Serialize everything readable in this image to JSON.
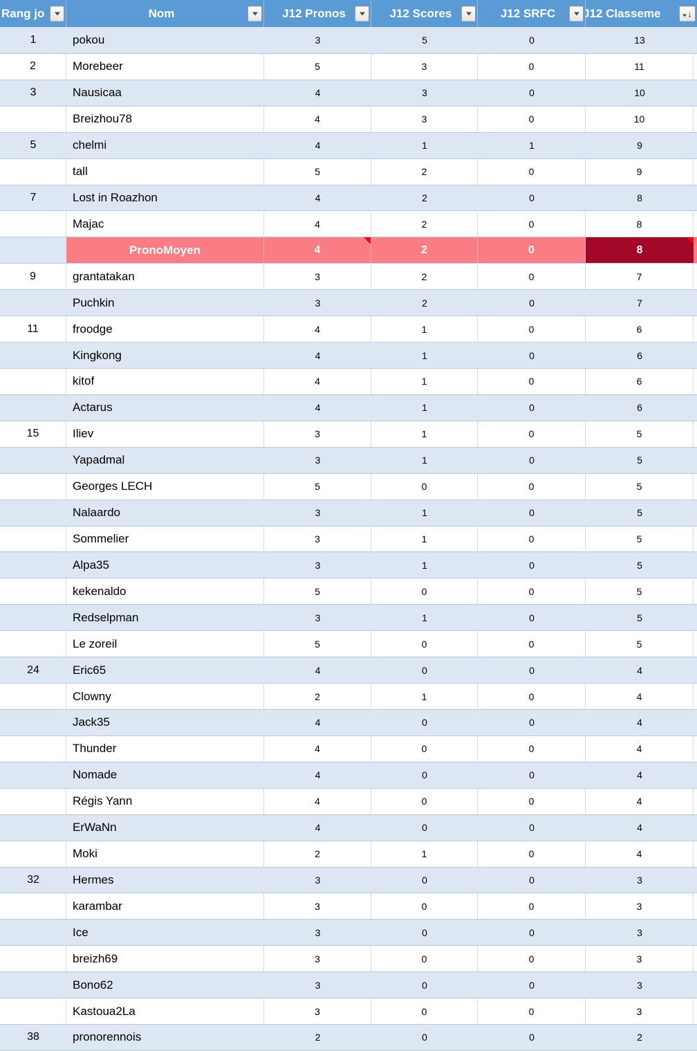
{
  "table": {
    "description_visible": "classement table",
    "colors": {
      "header_bg": "#5B9BD5",
      "header_text": "#FFFFFF",
      "band_blue": "#DCE7F3",
      "band_white": "#FFFFFF",
      "gridline_horizontal": "#B7CCE2",
      "gridline_vertical": "#D7DCE2",
      "average_row_bg": "#F97D82",
      "average_total_bg": "#A30728",
      "comment_indicator": "#FB0207"
    },
    "header": {
      "columns": [
        {
          "label": "Rang jo",
          "icon": "filter-dropdown-icon"
        },
        {
          "label": "Nom",
          "icon": "filter-dropdown-icon"
        },
        {
          "label": "J12 Pronos",
          "icon": "filter-dropdown-icon"
        },
        {
          "label": "J12 Scores",
          "icon": "filter-dropdown-icon"
        },
        {
          "label": "J12 SRFC",
          "icon": "filter-dropdown-icon"
        },
        {
          "label": "J12 Classeme",
          "icon": "sort-desc-filter-icon"
        }
      ]
    },
    "rows": [
      {
        "rank": "1",
        "name": "pokou",
        "pronos": "3",
        "scores": "5",
        "srfc": "0",
        "classement": "13"
      },
      {
        "rank": "2",
        "name": "Morebeer",
        "pronos": "5",
        "scores": "3",
        "srfc": "0",
        "classement": "11"
      },
      {
        "rank": "3",
        "name": "Nausicaa",
        "pronos": "4",
        "scores": "3",
        "srfc": "0",
        "classement": "10"
      },
      {
        "rank": "",
        "name": "Breizhou78",
        "pronos": "4",
        "scores": "3",
        "srfc": "0",
        "classement": "10"
      },
      {
        "rank": "5",
        "name": "chelmi",
        "pronos": "4",
        "scores": "1",
        "srfc": "1",
        "classement": "9"
      },
      {
        "rank": "",
        "name": "tall",
        "pronos": "5",
        "scores": "2",
        "srfc": "0",
        "classement": "9"
      },
      {
        "rank": "7",
        "name": "Lost in Roazhon",
        "pronos": "4",
        "scores": "2",
        "srfc": "0",
        "classement": "8"
      },
      {
        "rank": "",
        "name": "Majac",
        "pronos": "4",
        "scores": "2",
        "srfc": "0",
        "classement": "8"
      },
      {
        "rank": "",
        "name": "PronoMoyen",
        "pronos": "4",
        "scores": "2",
        "srfc": "0",
        "classement": "8",
        "is_average": true,
        "comment_indicator_cells": [
          "pronos",
          "classement"
        ]
      },
      {
        "rank": "9",
        "name": "grantatakan",
        "pronos": "3",
        "scores": "2",
        "srfc": "0",
        "classement": "7"
      },
      {
        "rank": "",
        "name": "Puchkin",
        "pronos": "3",
        "scores": "2",
        "srfc": "0",
        "classement": "7"
      },
      {
        "rank": "11",
        "name": "froodge",
        "pronos": "4",
        "scores": "1",
        "srfc": "0",
        "classement": "6"
      },
      {
        "rank": "",
        "name": "Kingkong",
        "pronos": "4",
        "scores": "1",
        "srfc": "0",
        "classement": "6"
      },
      {
        "rank": "",
        "name": "kitof",
        "pronos": "4",
        "scores": "1",
        "srfc": "0",
        "classement": "6"
      },
      {
        "rank": "",
        "name": "Actarus",
        "pronos": "4",
        "scores": "1",
        "srfc": "0",
        "classement": "6"
      },
      {
        "rank": "15",
        "name": "Iliev",
        "pronos": "3",
        "scores": "1",
        "srfc": "0",
        "classement": "5"
      },
      {
        "rank": "",
        "name": "Yapadmal",
        "pronos": "3",
        "scores": "1",
        "srfc": "0",
        "classement": "5"
      },
      {
        "rank": "",
        "name": "Georges LECH",
        "pronos": "5",
        "scores": "0",
        "srfc": "0",
        "classement": "5"
      },
      {
        "rank": "",
        "name": "Nalaardo",
        "pronos": "3",
        "scores": "1",
        "srfc": "0",
        "classement": "5"
      },
      {
        "rank": "",
        "name": "Sommelier",
        "pronos": "3",
        "scores": "1",
        "srfc": "0",
        "classement": "5"
      },
      {
        "rank": "",
        "name": "Alpa35",
        "pronos": "3",
        "scores": "1",
        "srfc": "0",
        "classement": "5"
      },
      {
        "rank": "",
        "name": "kekenaldo",
        "pronos": "5",
        "scores": "0",
        "srfc": "0",
        "classement": "5"
      },
      {
        "rank": "",
        "name": "Redselpman",
        "pronos": "3",
        "scores": "1",
        "srfc": "0",
        "classement": "5"
      },
      {
        "rank": "",
        "name": "Le zoreil",
        "pronos": "5",
        "scores": "0",
        "srfc": "0",
        "classement": "5"
      },
      {
        "rank": "24",
        "name": "Eric65",
        "pronos": "4",
        "scores": "0",
        "srfc": "0",
        "classement": "4"
      },
      {
        "rank": "",
        "name": "Clowny",
        "pronos": "2",
        "scores": "1",
        "srfc": "0",
        "classement": "4"
      },
      {
        "rank": "",
        "name": "Jack35",
        "pronos": "4",
        "scores": "0",
        "srfc": "0",
        "classement": "4"
      },
      {
        "rank": "",
        "name": "Thunder",
        "pronos": "4",
        "scores": "0",
        "srfc": "0",
        "classement": "4"
      },
      {
        "rank": "",
        "name": "Nomade",
        "pronos": "4",
        "scores": "0",
        "srfc": "0",
        "classement": "4"
      },
      {
        "rank": "",
        "name": "Régis Yann",
        "pronos": "4",
        "scores": "0",
        "srfc": "0",
        "classement": "4"
      },
      {
        "rank": "",
        "name": "ErWaNn",
        "pronos": "4",
        "scores": "0",
        "srfc": "0",
        "classement": "4"
      },
      {
        "rank": "",
        "name": "Moki",
        "pronos": "2",
        "scores": "1",
        "srfc": "0",
        "classement": "4"
      },
      {
        "rank": "32",
        "name": "Hermes",
        "pronos": "3",
        "scores": "0",
        "srfc": "0",
        "classement": "3"
      },
      {
        "rank": "",
        "name": "karambar",
        "pronos": "3",
        "scores": "0",
        "srfc": "0",
        "classement": "3"
      },
      {
        "rank": "",
        "name": "Ice",
        "pronos": "3",
        "scores": "0",
        "srfc": "0",
        "classement": "3"
      },
      {
        "rank": "",
        "name": "breizh69",
        "pronos": "3",
        "scores": "0",
        "srfc": "0",
        "classement": "3"
      },
      {
        "rank": "",
        "name": "Bono62",
        "pronos": "3",
        "scores": "0",
        "srfc": "0",
        "classement": "3"
      },
      {
        "rank": "",
        "name": "Kastoua2La",
        "pronos": "3",
        "scores": "0",
        "srfc": "0",
        "classement": "3"
      },
      {
        "rank": "38",
        "name": "pronorennois",
        "pronos": "2",
        "scores": "0",
        "srfc": "0",
        "classement": "2"
      }
    ]
  }
}
